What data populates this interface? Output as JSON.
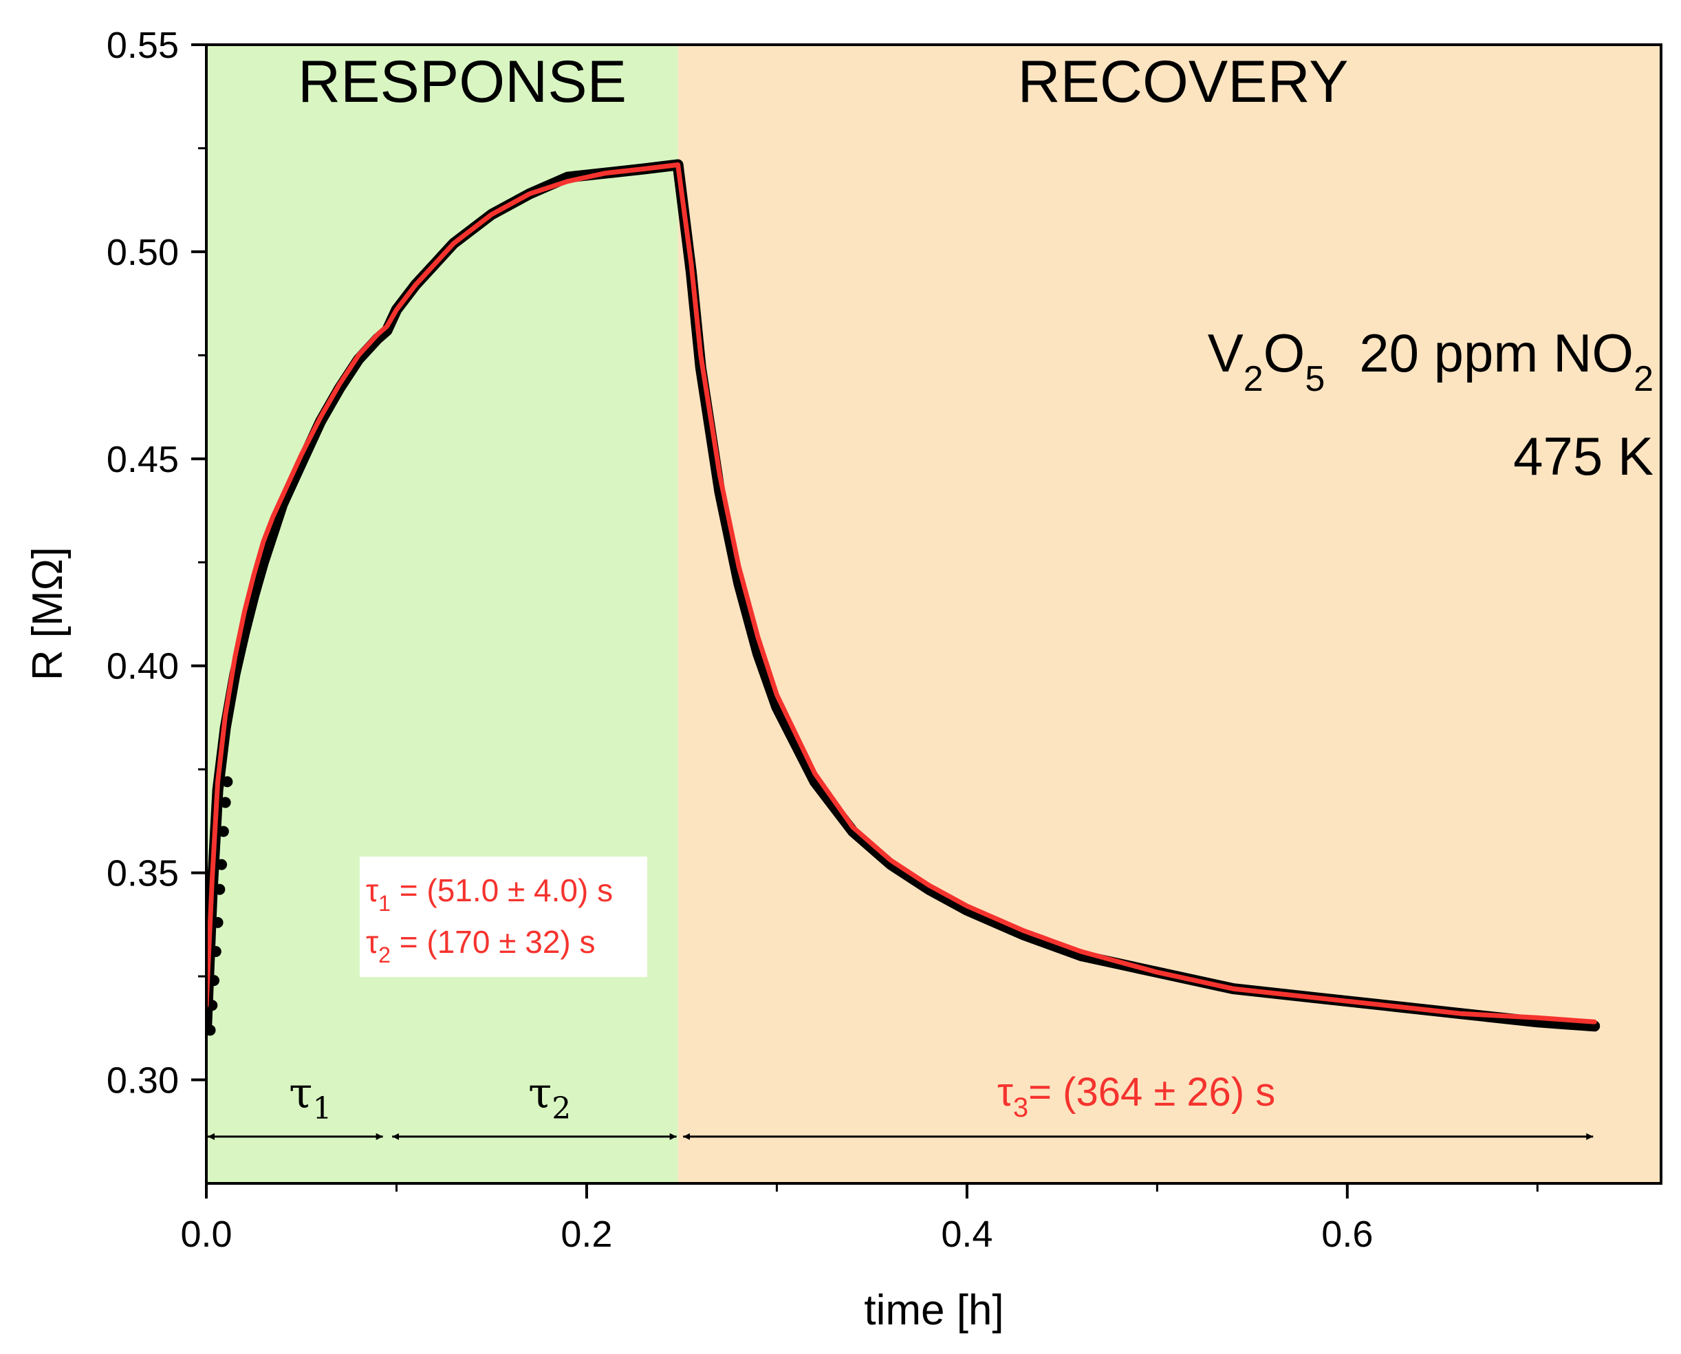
{
  "chart_data": {
    "type": "line",
    "xlabel": "time [h]",
    "ylabel": "R [MΩ]",
    "xlim": [
      0.0,
      0.765
    ],
    "ylim": [
      0.275,
      0.55
    ],
    "x_ticks_major": [
      0.0,
      0.2,
      0.4,
      0.6
    ],
    "x_tick_labels": [
      "0.0",
      "0.2",
      "0.4",
      "0.6"
    ],
    "x_ticks_minor": [
      0.1,
      0.3,
      0.5,
      0.7
    ],
    "y_ticks_major": [
      0.3,
      0.35,
      0.4,
      0.45,
      0.5,
      0.55
    ],
    "y_tick_labels": [
      "0.30",
      "0.35",
      "0.40",
      "0.45",
      "0.50",
      "0.55"
    ],
    "y_ticks_minor": [
      0.325,
      0.375,
      0.425,
      0.475,
      0.525
    ],
    "regions": [
      {
        "label": "RESPONSE",
        "x_start": 0.0,
        "x_end": 0.248,
        "color": "#d9f6c2"
      },
      {
        "label": "RECOVERY",
        "x_start": 0.248,
        "x_end": 0.765,
        "color": "#fde4c1"
      }
    ],
    "annotations": {
      "material_main": "V",
      "material_sub1": "2",
      "material_mid": "O",
      "material_sub2": "5",
      "gas_prefix": "20 ppm NO",
      "gas_sub": "2",
      "temperature": "475 K"
    },
    "fit_params": {
      "tau1": {
        "symbol": "τ",
        "sub": "1",
        "text": " = (51.0 ± 4.0) s"
      },
      "tau2": {
        "symbol": "τ",
        "sub": "2",
        "text": " = (170 ± 32) s"
      },
      "tau3": {
        "symbol": "τ",
        "sub": "3",
        "text": "= (364 ± 26) s"
      }
    },
    "tau_markers": [
      {
        "symbol": "τ",
        "sub": "1",
        "x_start": 0.0,
        "x_end": 0.095
      },
      {
        "symbol": "τ",
        "sub": "2",
        "x_start": 0.095,
        "x_end": 0.248
      },
      {
        "symbol": "τ",
        "sub": "3",
        "x_start": 0.248,
        "x_end": 0.73
      }
    ],
    "series": [
      {
        "kind": "measured",
        "color": "#000000",
        "x": [
          0.0,
          0.003,
          0.006,
          0.01,
          0.015,
          0.02,
          0.025,
          0.03,
          0.035,
          0.04,
          0.05,
          0.06,
          0.07,
          0.08,
          0.09,
          0.095,
          0.1,
          0.11,
          0.12,
          0.13,
          0.15,
          0.17,
          0.19,
          0.21,
          0.23,
          0.248,
          0.255,
          0.26,
          0.27,
          0.28,
          0.29,
          0.3,
          0.32,
          0.34,
          0.36,
          0.38,
          0.4,
          0.43,
          0.46,
          0.5,
          0.54,
          0.58,
          0.62,
          0.66,
          0.7,
          0.73
        ],
        "y": [
          0.312,
          0.345,
          0.37,
          0.385,
          0.398,
          0.408,
          0.417,
          0.425,
          0.432,
          0.439,
          0.449,
          0.459,
          0.467,
          0.474,
          0.479,
          0.481,
          0.486,
          0.492,
          0.497,
          0.502,
          0.509,
          0.514,
          0.518,
          0.519,
          0.52,
          0.521,
          0.495,
          0.472,
          0.442,
          0.42,
          0.403,
          0.39,
          0.372,
          0.36,
          0.352,
          0.346,
          0.341,
          0.335,
          0.33,
          0.326,
          0.322,
          0.32,
          0.318,
          0.316,
          0.314,
          0.313
        ]
      },
      {
        "kind": "fit",
        "color": "#f5332e",
        "x": [
          0.0,
          0.003,
          0.006,
          0.01,
          0.015,
          0.02,
          0.025,
          0.03,
          0.035,
          0.04,
          0.05,
          0.06,
          0.07,
          0.08,
          0.09,
          0.095,
          0.1,
          0.11,
          0.12,
          0.13,
          0.15,
          0.17,
          0.19,
          0.21,
          0.23,
          0.248,
          0.255,
          0.26,
          0.27,
          0.28,
          0.29,
          0.3,
          0.32,
          0.34,
          0.36,
          0.38,
          0.4,
          0.43,
          0.46,
          0.5,
          0.54,
          0.58,
          0.62,
          0.66,
          0.7,
          0.73
        ],
        "y": [
          0.318,
          0.348,
          0.372,
          0.388,
          0.402,
          0.413,
          0.422,
          0.43,
          0.436,
          0.441,
          0.451,
          0.46,
          0.468,
          0.475,
          0.48,
          0.482,
          0.486,
          0.492,
          0.497,
          0.502,
          0.509,
          0.514,
          0.517,
          0.519,
          0.52,
          0.521,
          0.497,
          0.475,
          0.446,
          0.424,
          0.407,
          0.393,
          0.374,
          0.361,
          0.353,
          0.347,
          0.342,
          0.336,
          0.331,
          0.326,
          0.322,
          0.32,
          0.318,
          0.316,
          0.315,
          0.314
        ]
      }
    ]
  }
}
